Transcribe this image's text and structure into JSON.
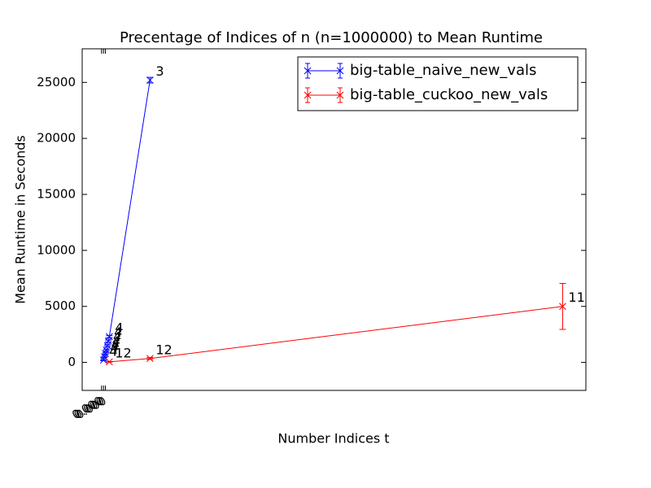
{
  "chart_data": {
    "type": "errorbar-line",
    "title": "Precentage of Indices of n (n=1000000) to Mean Runtime",
    "xlabel": "Number Indices t",
    "ylabel": "Mean Runtime in Seconds",
    "xlim": [
      -0.001,
      0.025
    ],
    "ylim": [
      -2500,
      28000
    ],
    "xticks": [
      {
        "value": 0,
        "label": "0.000"
      },
      {
        "value": 0.0001,
        "label": "0.000"
      },
      {
        "value": 0.0002,
        "label": "0.000"
      }
    ],
    "yticks": [
      0,
      5000,
      10000,
      15000,
      20000,
      25000
    ],
    "legend": "upper right",
    "series": [
      {
        "name": "big-table_naive_new_vals",
        "color": "#0000ff",
        "x": [
          0.0001,
          0.00015,
          0.0002,
          0.00025,
          0.0003,
          0.00035,
          0.0004,
          0.0025
        ],
        "values": [
          200,
          500,
          800,
          1100,
          1500,
          1900,
          2300,
          25200
        ],
        "errors": [
          50,
          50,
          60,
          60,
          70,
          80,
          90,
          250
        ],
        "labels": [
          "4",
          "4",
          "4",
          "4",
          "4",
          "4",
          "4",
          "3"
        ]
      },
      {
        "name": "big-table_cuckoo_new_vals",
        "color": "#ff0000",
        "x": [
          0.0004,
          0.0025,
          0.0238
        ],
        "values": [
          50,
          350,
          5000
        ],
        "errors": [
          30,
          80,
          2050
        ],
        "labels": [
          "12",
          "12",
          "11"
        ]
      }
    ]
  }
}
